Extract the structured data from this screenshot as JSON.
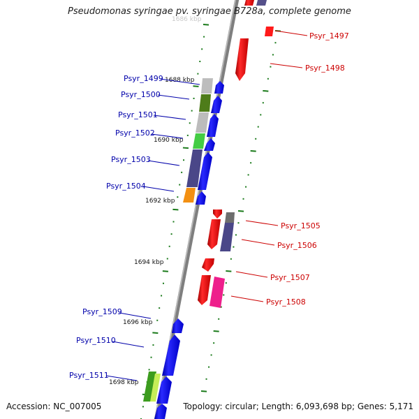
{
  "title": "Pseudomonas syringae pv. syringae B728a, complete genome",
  "accession": "Accession: NC_007005",
  "summary": "Topology: circular; Length: 6,093,698 bp; Genes: 5,171",
  "scale_labels": [
    "1686 kbp",
    "1688 kbp",
    "1690 kbp",
    "1692 kbp",
    "1694 kbp",
    "1696 kbp",
    "1698 kbp"
  ],
  "forward_genes": [
    "Psyr_1497",
    "Psyr_1498",
    "Psyr_1505",
    "Psyr_1506",
    "Psyr_1507",
    "Psyr_1508"
  ],
  "reverse_genes": [
    "Psyr_1499",
    "Psyr_1500",
    "Psyr_1501",
    "Psyr_1502",
    "Psyr_1503",
    "Psyr_1504",
    "Psyr_1509",
    "Psyr_1510",
    "Psyr_1511"
  ],
  "colors": {
    "forward_label": "#cc0000",
    "reverse_label": "#0000aa",
    "forward_gene": "#ff0000",
    "reverse_gene": "#0000ff",
    "backbone": "#808080",
    "tick": "#1a7a1a"
  }
}
